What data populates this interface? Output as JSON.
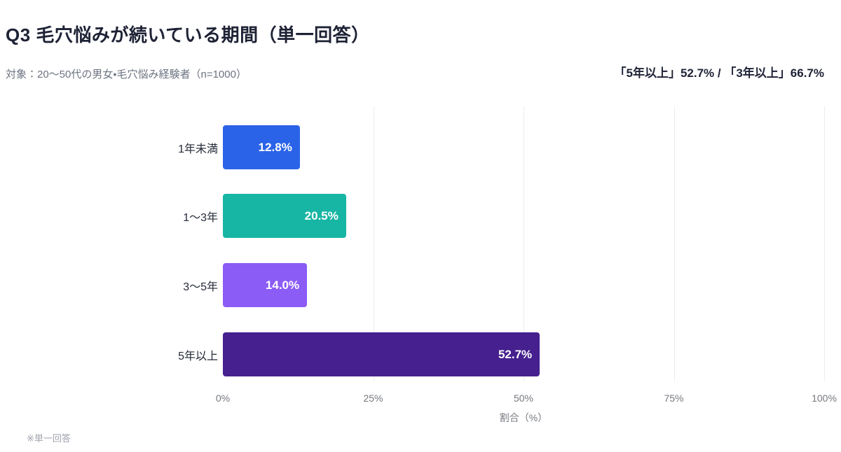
{
  "header": {
    "title": "Q3 毛穴悩みが続いている期間（単一回答）",
    "subtitle": "対象：20〜50代の男女・毛穴悩み経験者（n=1000）",
    "highlight": "「5年以上」52.7% / 「3年以上」66.7%"
  },
  "chart_data": {
    "type": "bar",
    "orientation": "horizontal",
    "title": "Q3 毛穴悩みが続いている期間（単一回答）",
    "categories": [
      "1年未満",
      "1〜3年",
      "3〜5年",
      "5年以上"
    ],
    "values": [
      12.8,
      20.5,
      14.0,
      52.7
    ],
    "value_labels": [
      "12.8%",
      "20.5%",
      "14.0%",
      "52.7%"
    ],
    "bar_colors": [
      "#2b63e8",
      "#17b5a3",
      "#8b5cf6",
      "#45208e"
    ],
    "xlabel": "割合（%）",
    "xlim": [
      0,
      100
    ],
    "x_ticks": [
      "0%",
      "25%",
      "50%",
      "75%",
      "100%"
    ],
    "x_tick_values": [
      0,
      25,
      50,
      75,
      100
    ],
    "grid": true,
    "legend": "none"
  },
  "footer": {
    "note": "※単一回答"
  }
}
